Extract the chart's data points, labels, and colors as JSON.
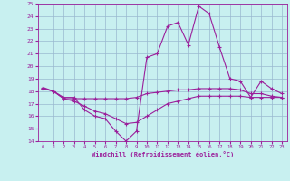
{
  "line1_x": [
    0,
    1,
    2,
    3,
    4,
    5,
    6,
    7,
    8,
    9,
    10,
    11,
    12,
    13,
    14,
    15,
    16,
    17,
    18,
    19,
    20,
    21,
    22,
    23
  ],
  "line1_y": [
    18.3,
    18.0,
    17.5,
    17.5,
    16.5,
    16.0,
    15.8,
    14.8,
    14.0,
    14.8,
    20.7,
    21.0,
    23.2,
    23.5,
    21.7,
    24.8,
    24.2,
    21.5,
    19.0,
    18.8,
    17.5,
    18.8,
    18.2,
    17.8
  ],
  "line2_x": [
    0,
    1,
    2,
    3,
    4,
    5,
    6,
    7,
    8,
    9,
    10,
    11,
    12,
    13,
    14,
    15,
    16,
    17,
    18,
    19,
    20,
    21,
    22,
    23
  ],
  "line2_y": [
    18.2,
    18.0,
    17.4,
    17.4,
    17.4,
    17.4,
    17.4,
    17.4,
    17.4,
    17.5,
    17.8,
    17.9,
    18.0,
    18.1,
    18.1,
    18.2,
    18.2,
    18.2,
    18.2,
    18.1,
    17.8,
    17.8,
    17.6,
    17.5
  ],
  "line3_x": [
    0,
    1,
    2,
    3,
    4,
    5,
    6,
    7,
    8,
    9,
    10,
    11,
    12,
    13,
    14,
    15,
    16,
    17,
    18,
    19,
    20,
    21,
    22,
    23
  ],
  "line3_y": [
    18.2,
    18.0,
    17.4,
    17.2,
    16.8,
    16.4,
    16.2,
    15.8,
    15.4,
    15.5,
    16.0,
    16.5,
    17.0,
    17.2,
    17.4,
    17.6,
    17.6,
    17.6,
    17.6,
    17.6,
    17.5,
    17.5,
    17.5,
    17.5
  ],
  "line_color": "#9b1f9b",
  "bg_color": "#c8f0f0",
  "grid_color": "#9ab8d0",
  "xlabel": "Windchill (Refroidissement éolien,°C)",
  "ylim": [
    14,
    25
  ],
  "xlim": [
    -0.5,
    23.5
  ],
  "yticks": [
    14,
    15,
    16,
    17,
    18,
    19,
    20,
    21,
    22,
    23,
    24,
    25
  ],
  "xticks": [
    0,
    1,
    2,
    3,
    4,
    5,
    6,
    7,
    8,
    9,
    10,
    11,
    12,
    13,
    14,
    15,
    16,
    17,
    18,
    19,
    20,
    21,
    22,
    23
  ]
}
